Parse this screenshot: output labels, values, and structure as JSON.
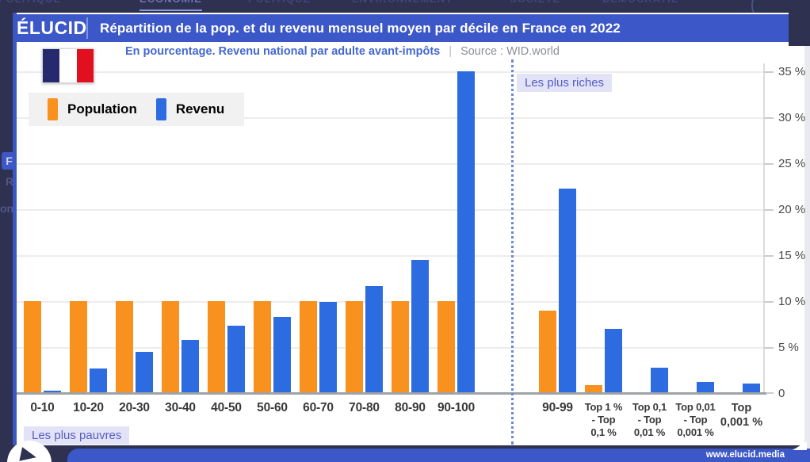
{
  "page": {
    "nav_items": [
      "GÉOPOLITIQUE",
      "ÉCONOMIE",
      "POLITIQUE",
      "ENVIRONNEMENT",
      "SOCIÉTÉ",
      "DÉMOCRATIE"
    ],
    "active_nav": "ÉCONOMIE",
    "left_fragments": [
      "F",
      "R",
      "on"
    ],
    "footer_url": "www.elucid.media"
  },
  "header": {
    "logo": "ÉLUCID",
    "title": "Répartition de la pop. et du revenu mensuel moyen par décile en France en 2022"
  },
  "subtitle": {
    "text": "En pourcentage. Revenu national par adulte avant-impôts",
    "separator": "|",
    "source": "Source : WID.world"
  },
  "legend": {
    "items": [
      {
        "label": "Population",
        "color": "#F8911E"
      },
      {
        "label": "Revenu",
        "color": "#2D6CE0"
      }
    ]
  },
  "annotations": {
    "poorest": "Les plus pauvres",
    "richest": "Les plus riches"
  },
  "colors": {
    "accent_blue": "#3C57C7",
    "bar_orange": "#F8911E",
    "bar_blue": "#2D6CE0",
    "background_dark": "#2E3150",
    "badge_bg": "#E2E3F6",
    "badge_text": "#585CC2"
  },
  "chart_data": {
    "type": "bar",
    "title": "Répartition de la pop. et du revenu mensuel moyen par décile en France en 2022",
    "subtitle": "En pourcentage. Revenu national par adulte avant-impôts",
    "source": "Source : WID.world",
    "ylabel": "",
    "ylim": [
      0,
      35
    ],
    "grid": true,
    "legend_position": "top-left",
    "yticks": [
      0,
      5,
      10,
      15,
      20,
      25,
      30,
      35
    ],
    "ytick_labels": [
      "0",
      "5 %",
      "10 %",
      "15 %",
      "20 %",
      "25 %",
      "30 %",
      "35 %"
    ],
    "groups": [
      {
        "name": "deciles",
        "annotation": "Les plus pauvres",
        "categories": [
          "0-10",
          "10-20",
          "20-30",
          "30-40",
          "40-50",
          "50-60",
          "60-70",
          "70-80",
          "80-90",
          "90-100"
        ],
        "series": [
          {
            "name": "Population",
            "color": "#F8911E",
            "values": [
              10,
              10,
              10,
              10,
              10,
              10,
              10,
              10,
              10,
              10
            ]
          },
          {
            "name": "Revenu",
            "color": "#2D6CE0",
            "values": [
              0.3,
              2.7,
              4.5,
              5.8,
              7.3,
              8.3,
              9.9,
              11.6,
              14.5,
              35
            ]
          }
        ]
      },
      {
        "name": "top-riches",
        "annotation": "Les plus riches",
        "categories": [
          "90-99",
          "Top 1 % - Top 0,1 %",
          "Top 0,1 - Top 0,01 %",
          "Top 0,01 - Top 0,001 %",
          "Top 0,001 %"
        ],
        "category_lines": [
          {
            "lines": [
              "90-99"
            ],
            "style": "decile"
          },
          {
            "lines": [
              "Top 1 %",
              "- Top",
              "0,1 %"
            ],
            "style": "small"
          },
          {
            "lines": [
              "Top 0,1",
              "- Top",
              "0,01 %"
            ],
            "style": "small"
          },
          {
            "lines": [
              "Top 0,01",
              "- Top",
              "0,001 %"
            ],
            "style": "small"
          },
          {
            "lines": [
              "Top",
              "0,001 %"
            ],
            "style": "big"
          }
        ],
        "series": [
          {
            "name": "Population",
            "color": "#F8911E",
            "values": [
              9,
              0.9,
              0.1,
              0,
              0
            ]
          },
          {
            "name": "Revenu",
            "color": "#2D6CE0",
            "values": [
              22.2,
              7,
              2.8,
              1.2,
              1
            ]
          }
        ]
      }
    ]
  }
}
